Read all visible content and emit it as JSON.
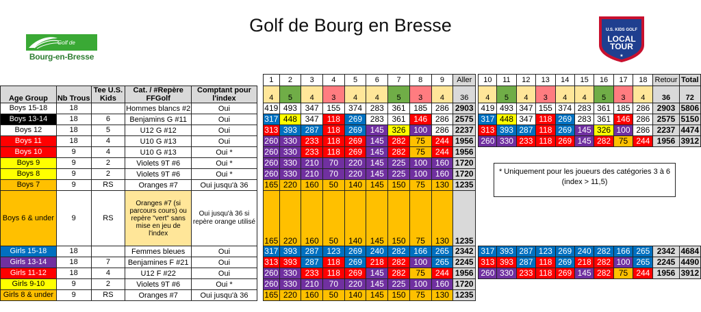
{
  "title": "Golf de Bourg en Bresse",
  "club_logo": {
    "line1": "Golf de",
    "line2": "Bourg-en-Bresse"
  },
  "tour_logo": {
    "line1": "U.S. KIDS GOLF",
    "line2": "LOCAL TOUR"
  },
  "colors": {
    "red": "#ff0000",
    "black": "#000000",
    "blue": "#0070c0",
    "purple": "#7030a0",
    "yellow": "#ffff00",
    "orange": "#ffc000",
    "white": "#ffffff",
    "grey": "#d9d9d9",
    "green": "#70ad47",
    "pink": "#ff7c80",
    "lightyellow": "#ffe699"
  },
  "headers": {
    "age_group": "Age Group",
    "nb_trous": "Nb Trous",
    "tee": "Tee U.S. Kids",
    "cat": "Cat. / #Repère FFGolf",
    "comptant": "Comptant pour l'index",
    "aller": "Aller",
    "retour": "Retour",
    "total": "Total"
  },
  "holes": [
    "1",
    "2",
    "3",
    "4",
    "5",
    "6",
    "7",
    "8",
    "9",
    "10",
    "11",
    "12",
    "13",
    "14",
    "15",
    "16",
    "17",
    "18"
  ],
  "pars": [
    "4",
    "5",
    "4",
    "3",
    "4",
    "4",
    "5",
    "3",
    "4",
    "4",
    "5",
    "4",
    "3",
    "4",
    "4",
    "5",
    "3",
    "4"
  ],
  "par_colors": [
    "#ffe699",
    "#70ad47",
    "#ffe699",
    "#ff7c80",
    "#ffe699",
    "#ffe699",
    "#70ad47",
    "#ff7c80",
    "#ffe699",
    "#ffe699",
    "#70ad47",
    "#ffe699",
    "#ff7c80",
    "#ffe699",
    "#ffe699",
    "#70ad47",
    "#ff7c80",
    "#ffe699"
  ],
  "par_totals": {
    "aller": "36",
    "retour": "36",
    "total": "72"
  },
  "rows": [
    {
      "age": "Boys 15-18",
      "age_bg": "#ffffff",
      "age_fg": "#000000",
      "nb": "18",
      "tee": "",
      "cat": "Hommes blancs #2",
      "comp": "Oui",
      "color": "white",
      "front": [
        "419",
        "493",
        "347",
        "155",
        "374",
        "283",
        "361",
        "185",
        "286"
      ],
      "front_total": "2903",
      "back": [
        "419",
        "493",
        "347",
        "155",
        "374",
        "283",
        "361",
        "185",
        "286"
      ],
      "back_total": "2903",
      "total": "5806"
    },
    {
      "age": "Boys 13-14",
      "age_bg": "#000000",
      "age_fg": "#ffffff",
      "nb": "18",
      "tee": "6",
      "cat": "Benjamins G #11",
      "comp": "Oui",
      "color": "mixed1",
      "front": [
        "317",
        "448",
        "347",
        "118",
        "269",
        "283",
        "361",
        "146",
        "286"
      ],
      "front_total": "2575",
      "back": [
        "317",
        "448",
        "347",
        "118",
        "269",
        "283",
        "361",
        "146",
        "286"
      ],
      "back_total": "2575",
      "total": "5150"
    },
    {
      "age": "Boys 12",
      "age_bg": "#ffffff",
      "age_fg": "#000000",
      "nb": "18",
      "tee": "5",
      "cat": "U12 G #12",
      "comp": "Oui",
      "color": "mixed2",
      "front": [
        "313",
        "393",
        "287",
        "118",
        "269",
        "145",
        "326",
        "100",
        "286"
      ],
      "front_total": "2237",
      "back": [
        "313",
        "393",
        "287",
        "118",
        "269",
        "145",
        "326",
        "100",
        "286"
      ],
      "back_total": "2237",
      "total": "4474"
    },
    {
      "age": "Boys 11",
      "age_bg": "#ff0000",
      "age_fg": "#ffffff",
      "nb": "18",
      "tee": "4",
      "cat": "U10 G #13",
      "comp": "Oui",
      "color": "mixed3",
      "front": [
        "260",
        "330",
        "233",
        "118",
        "269",
        "145",
        "282",
        "75",
        "244"
      ],
      "front_total": "1956",
      "back": [
        "260",
        "330",
        "233",
        "118",
        "269",
        "145",
        "282",
        "75",
        "244"
      ],
      "back_total": "1956",
      "total": "3912"
    },
    {
      "age": "Boys 10",
      "age_bg": "#ff0000",
      "age_fg": "#ffffff",
      "nb": "9",
      "tee": "4",
      "cat": "U10 G #13",
      "comp": "Oui *",
      "color": "mixed3",
      "front": [
        "260",
        "330",
        "233",
        "118",
        "269",
        "145",
        "282",
        "75",
        "244"
      ],
      "front_total": "1956"
    },
    {
      "age": "Boys 9",
      "age_bg": "#ffff00",
      "age_fg": "#000000",
      "nb": "9",
      "tee": "2",
      "cat": "Violets 9T #6",
      "comp": "Oui *",
      "color": "purple",
      "front": [
        "260",
        "330",
        "210",
        "70",
        "220",
        "145",
        "225",
        "100",
        "160"
      ],
      "front_total": "1720"
    },
    {
      "age": "Boys 8",
      "age_bg": "#ffff00",
      "age_fg": "#000000",
      "nb": "9",
      "tee": "2",
      "cat": "Violets 9T #6",
      "comp": "Oui *",
      "color": "purple",
      "front": [
        "260",
        "330",
        "210",
        "70",
        "220",
        "145",
        "225",
        "100",
        "160"
      ],
      "front_total": "1720"
    },
    {
      "age": "Boys 7",
      "age_bg": "#ffc000",
      "age_fg": "#000000",
      "nb": "9",
      "tee": "RS",
      "cat": "Oranges #7",
      "comp": "Oui  jusqu'à 36",
      "color": "orange",
      "front": [
        "165",
        "220",
        "160",
        "50",
        "140",
        "145",
        "150",
        "75",
        "130"
      ],
      "front_total": "1235"
    },
    {
      "age": "Boys 6 & under",
      "age_bg": "#ffc000",
      "age_fg": "#000000",
      "nb": "9",
      "tee": "RS",
      "cat": "Oranges #7 (si parcours cours) ou repère \"vert\" sans mise en jeu de l'index",
      "comp": "Oui  jusqu'à 36 si repère orange utilisé",
      "color": "orange",
      "big": true,
      "front": [
        "165",
        "220",
        "160",
        "50",
        "140",
        "145",
        "150",
        "75",
        "130"
      ],
      "front_total": "1235"
    },
    {
      "age": "Girls 15-18",
      "age_bg": "#0070c0",
      "age_fg": "#ffffff",
      "nb": "18",
      "tee": "",
      "cat": "Femmes bleues",
      "comp": "Oui",
      "color": "blue",
      "front": [
        "317",
        "393",
        "287",
        "123",
        "269",
        "240",
        "282",
        "166",
        "265"
      ],
      "front_total": "2342",
      "back": [
        "317",
        "393",
        "287",
        "123",
        "269",
        "240",
        "282",
        "166",
        "265"
      ],
      "back_total": "2342",
      "total": "4684"
    },
    {
      "age": "Girls 13-14",
      "age_bg": "#7030a0",
      "age_fg": "#ffffff",
      "nb": "18",
      "tee": "7",
      "cat": "Benjamines F #21",
      "comp": "Oui",
      "color": "mixed4",
      "front": [
        "313",
        "393",
        "287",
        "118",
        "269",
        "218",
        "282",
        "100",
        "265"
      ],
      "front_total": "2245",
      "back": [
        "313",
        "393",
        "287",
        "118",
        "269",
        "218",
        "282",
        "100",
        "265"
      ],
      "back_total": "2245",
      "total": "4490"
    },
    {
      "age": "Girls 11-12",
      "age_bg": "#ff0000",
      "age_fg": "#ffffff",
      "nb": "18",
      "tee": "4",
      "cat": "U12 F #22",
      "comp": "Oui",
      "color": "mixed3",
      "front": [
        "260",
        "330",
        "233",
        "118",
        "269",
        "145",
        "282",
        "75",
        "244"
      ],
      "front_total": "1956",
      "back": [
        "260",
        "330",
        "233",
        "118",
        "269",
        "145",
        "282",
        "75",
        "244"
      ],
      "back_total": "1956",
      "total": "3912"
    },
    {
      "age": "Girls 9-10",
      "age_bg": "#ffff00",
      "age_fg": "#000000",
      "nb": "9",
      "tee": "2",
      "cat": "Violets 9T #6",
      "comp": "Oui *",
      "color": "purple",
      "front": [
        "260",
        "330",
        "210",
        "70",
        "220",
        "145",
        "225",
        "100",
        "160"
      ],
      "front_total": "1720"
    },
    {
      "age": "Girls 8 & under",
      "age_bg": "#ffc000",
      "age_fg": "#000000",
      "nb": "9",
      "tee": "RS",
      "cat": "Oranges #7",
      "comp": "Oui  jusqu'à 36",
      "color": "orange",
      "front": [
        "165",
        "220",
        "160",
        "50",
        "140",
        "145",
        "150",
        "75",
        "130"
      ],
      "front_total": "1235"
    }
  ],
  "note": "* Uniquement  pour les joueurs des catégories 3 à 6 (index > 11,5)"
}
